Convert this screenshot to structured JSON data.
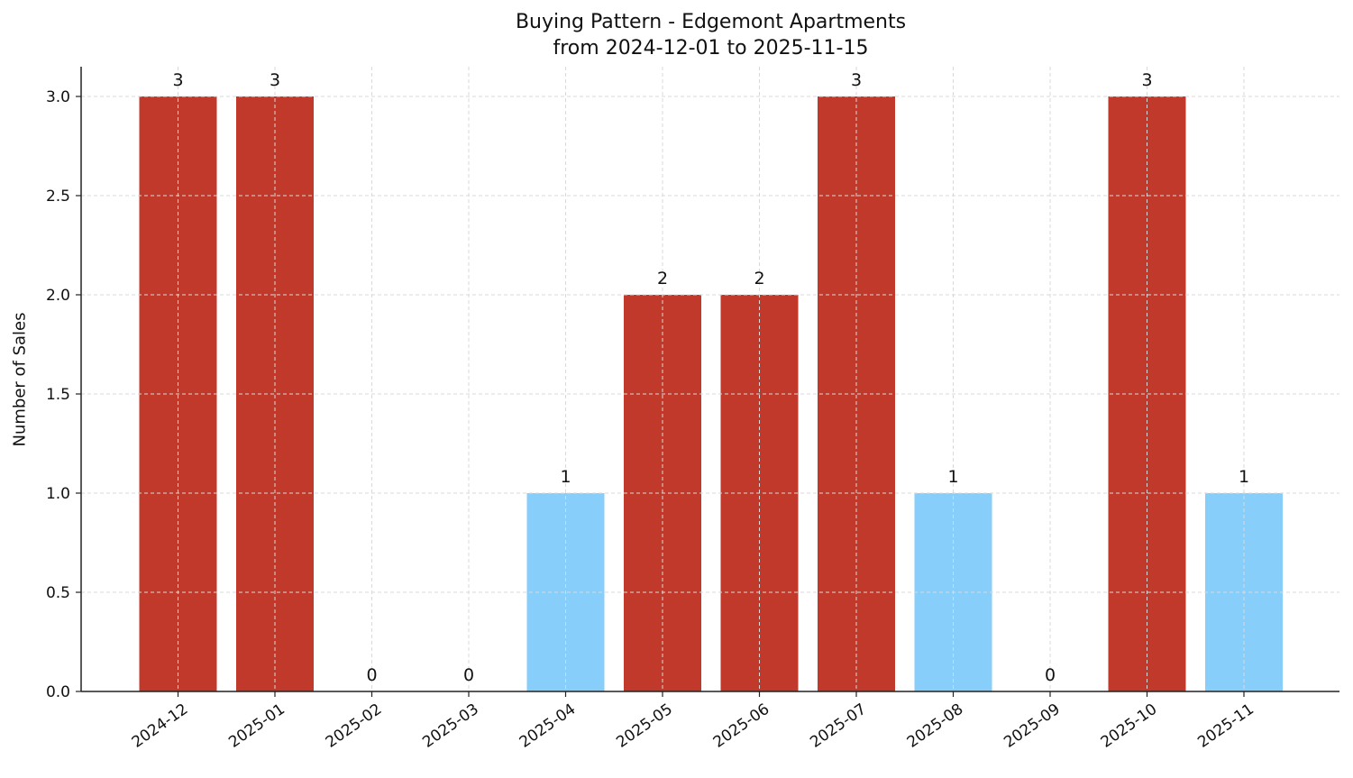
{
  "chart_data": {
    "type": "bar",
    "title": "Buying Pattern - Edgemont Apartments",
    "subtitle": "from 2024-12-01 to 2025-11-15",
    "xlabel": "",
    "ylabel": "Number of Sales",
    "categories": [
      "2024-12",
      "2025-01",
      "2025-02",
      "2025-03",
      "2025-04",
      "2025-05",
      "2025-06",
      "2025-07",
      "2025-08",
      "2025-09",
      "2025-10",
      "2025-11"
    ],
    "values": [
      3,
      3,
      0,
      0,
      1,
      2,
      2,
      3,
      1,
      0,
      3,
      1
    ],
    "bar_colors": [
      "#c0392b",
      "#c0392b",
      "#c0392b",
      "#c0392b",
      "#87cefa",
      "#c0392b",
      "#c0392b",
      "#c0392b",
      "#87cefa",
      "#c0392b",
      "#c0392b",
      "#87cefa"
    ],
    "data_labels": [
      "3",
      "3",
      "0",
      "0",
      "1",
      "2",
      "2",
      "3",
      "1",
      "0",
      "3",
      "1"
    ],
    "ylim": [
      0,
      3.15
    ],
    "yticks": [
      "0.0",
      "0.5",
      "1.0",
      "1.5",
      "2.0",
      "2.5",
      "3.0"
    ],
    "grid": true,
    "legend": null
  },
  "colors": {
    "high": "#c0392b",
    "low": "#87cefa",
    "grid": "#d9d9d9",
    "axis": "#222222"
  }
}
